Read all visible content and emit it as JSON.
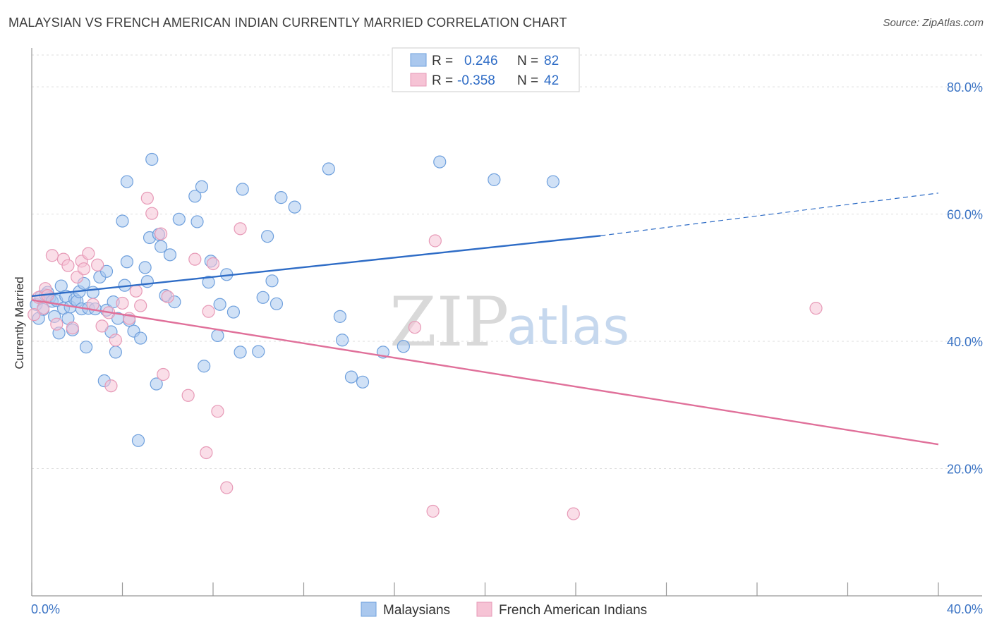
{
  "title": "MALAYSIAN VS FRENCH AMERICAN INDIAN CURRENTLY MARRIED CORRELATION CHART",
  "source": "Source: ZipAtlas.com",
  "watermark": {
    "part1": "ZIP",
    "part2": "atlas"
  },
  "stats": [
    {
      "r_label": "R =",
      "r_value": "0.246",
      "n_label": "N =",
      "n_value": "82"
    },
    {
      "r_label": "R =",
      "r_value": "-0.358",
      "n_label": "N =",
      "n_value": "42"
    }
  ],
  "chart_data": {
    "type": "scatter",
    "title": "MALAYSIAN VS FRENCH AMERICAN INDIAN CURRENTLY MARRIED CORRELATION CHART",
    "xlabel": "",
    "ylabel": "Currently Married",
    "xlim": [
      0,
      40
    ],
    "ylim": [
      0,
      85
    ],
    "x_tick_labels": [
      "0.0%",
      "40.0%"
    ],
    "y_ticks": [
      20,
      40,
      60,
      80
    ],
    "y_tick_labels": [
      "20.0%",
      "40.0%",
      "60.0%",
      "80.0%"
    ],
    "grid": true,
    "legend_position": "bottom-center",
    "series": [
      {
        "name": "Malaysians",
        "color": "#6fa0dd",
        "fill": "#aac8ee",
        "trend": {
          "x": [
            0,
            25.1
          ],
          "y": [
            47.1,
            56.6
          ],
          "dash_to_x": 40,
          "dash_to_y": 63.3,
          "color": "#2e6cc6"
        },
        "points": [
          [
            0.2,
            45.8
          ],
          [
            0.4,
            47.0
          ],
          [
            0.5,
            45.0
          ],
          [
            0.6,
            47.3
          ],
          [
            0.7,
            47.7
          ],
          [
            0.8,
            46.9
          ],
          [
            0.9,
            46.3
          ],
          [
            1.0,
            43.9
          ],
          [
            1.1,
            46.4
          ],
          [
            1.2,
            41.3
          ],
          [
            1.3,
            48.7
          ],
          [
            1.4,
            45.2
          ],
          [
            1.5,
            47.1
          ],
          [
            1.6,
            43.6
          ],
          [
            1.7,
            45.4
          ],
          [
            1.8,
            41.8
          ],
          [
            1.9,
            46.6
          ],
          [
            2.0,
            46.3
          ],
          [
            2.1,
            47.8
          ],
          [
            2.2,
            45.1
          ],
          [
            2.3,
            49.1
          ],
          [
            2.4,
            39.1
          ],
          [
            2.5,
            45.2
          ],
          [
            2.7,
            47.7
          ],
          [
            2.8,
            45.1
          ],
          [
            3.0,
            50.1
          ],
          [
            3.2,
            33.8
          ],
          [
            3.3,
            51.0
          ],
          [
            3.3,
            44.9
          ],
          [
            3.5,
            41.5
          ],
          [
            3.6,
            46.2
          ],
          [
            3.7,
            38.3
          ],
          [
            3.8,
            43.6
          ],
          [
            4.0,
            58.9
          ],
          [
            4.1,
            48.8
          ],
          [
            4.2,
            65.1
          ],
          [
            4.2,
            52.5
          ],
          [
            4.3,
            43.3
          ],
          [
            4.5,
            41.6
          ],
          [
            4.7,
            24.4
          ],
          [
            4.8,
            40.5
          ],
          [
            5.0,
            51.6
          ],
          [
            5.1,
            49.4
          ],
          [
            5.2,
            56.3
          ],
          [
            5.3,
            68.6
          ],
          [
            5.5,
            33.3
          ],
          [
            5.6,
            56.8
          ],
          [
            5.7,
            54.9
          ],
          [
            5.9,
            47.2
          ],
          [
            6.1,
            53.6
          ],
          [
            6.3,
            46.2
          ],
          [
            6.5,
            59.2
          ],
          [
            7.2,
            62.8
          ],
          [
            7.3,
            58.8
          ],
          [
            7.5,
            64.3
          ],
          [
            7.6,
            36.1
          ],
          [
            7.8,
            49.3
          ],
          [
            7.9,
            52.6
          ],
          [
            8.2,
            40.9
          ],
          [
            8.3,
            45.8
          ],
          [
            8.6,
            50.5
          ],
          [
            8.9,
            44.6
          ],
          [
            9.2,
            38.3
          ],
          [
            9.3,
            63.9
          ],
          [
            10.0,
            38.4
          ],
          [
            10.2,
            46.9
          ],
          [
            10.4,
            56.5
          ],
          [
            10.6,
            49.5
          ],
          [
            10.8,
            45.9
          ],
          [
            11.0,
            62.6
          ],
          [
            11.6,
            61.1
          ],
          [
            13.1,
            67.1
          ],
          [
            13.6,
            43.9
          ],
          [
            13.7,
            40.2
          ],
          [
            14.1,
            34.4
          ],
          [
            14.6,
            33.6
          ],
          [
            15.5,
            38.3
          ],
          [
            16.4,
            39.2
          ],
          [
            18.0,
            68.2
          ],
          [
            20.4,
            65.4
          ],
          [
            23.0,
            65.1
          ],
          [
            0.3,
            43.6
          ]
        ]
      },
      {
        "name": "French American Indians",
        "color": "#e79ab7",
        "fill": "#f6c3d5",
        "trend": {
          "x": [
            0,
            40
          ],
          "y": [
            46.5,
            23.8
          ],
          "color": "#e0709a"
        },
        "points": [
          [
            0.3,
            46.9
          ],
          [
            0.5,
            45.2
          ],
          [
            0.6,
            48.3
          ],
          [
            0.7,
            47.2
          ],
          [
            0.9,
            53.5
          ],
          [
            1.1,
            42.7
          ],
          [
            1.4,
            52.9
          ],
          [
            1.6,
            51.9
          ],
          [
            1.8,
            42.1
          ],
          [
            2.0,
            50.1
          ],
          [
            2.2,
            52.6
          ],
          [
            2.3,
            51.4
          ],
          [
            2.5,
            53.8
          ],
          [
            2.7,
            45.8
          ],
          [
            2.9,
            52.0
          ],
          [
            3.1,
            42.4
          ],
          [
            3.4,
            44.5
          ],
          [
            3.5,
            33.0
          ],
          [
            3.7,
            40.2
          ],
          [
            4.0,
            46.0
          ],
          [
            4.3,
            43.6
          ],
          [
            4.6,
            47.9
          ],
          [
            4.8,
            45.6
          ],
          [
            5.1,
            62.5
          ],
          [
            5.3,
            60.1
          ],
          [
            5.7,
            56.9
          ],
          [
            5.8,
            34.8
          ],
          [
            6.0,
            47.0
          ],
          [
            6.9,
            31.5
          ],
          [
            7.2,
            52.9
          ],
          [
            7.7,
            22.5
          ],
          [
            7.8,
            44.7
          ],
          [
            8.0,
            52.2
          ],
          [
            8.2,
            29.0
          ],
          [
            8.6,
            17.0
          ],
          [
            9.2,
            57.7
          ],
          [
            16.9,
            42.2
          ],
          [
            17.7,
            13.3
          ],
          [
            17.8,
            55.8
          ],
          [
            23.9,
            12.9
          ],
          [
            34.6,
            45.2
          ],
          [
            0.1,
            44.2
          ]
        ]
      }
    ]
  },
  "legend": [
    {
      "label": "Malaysians",
      "color": "#aac8ee",
      "border": "#6fa0dd"
    },
    {
      "label": "French American Indians",
      "color": "#f6c3d5",
      "border": "#e79ab7"
    }
  ]
}
